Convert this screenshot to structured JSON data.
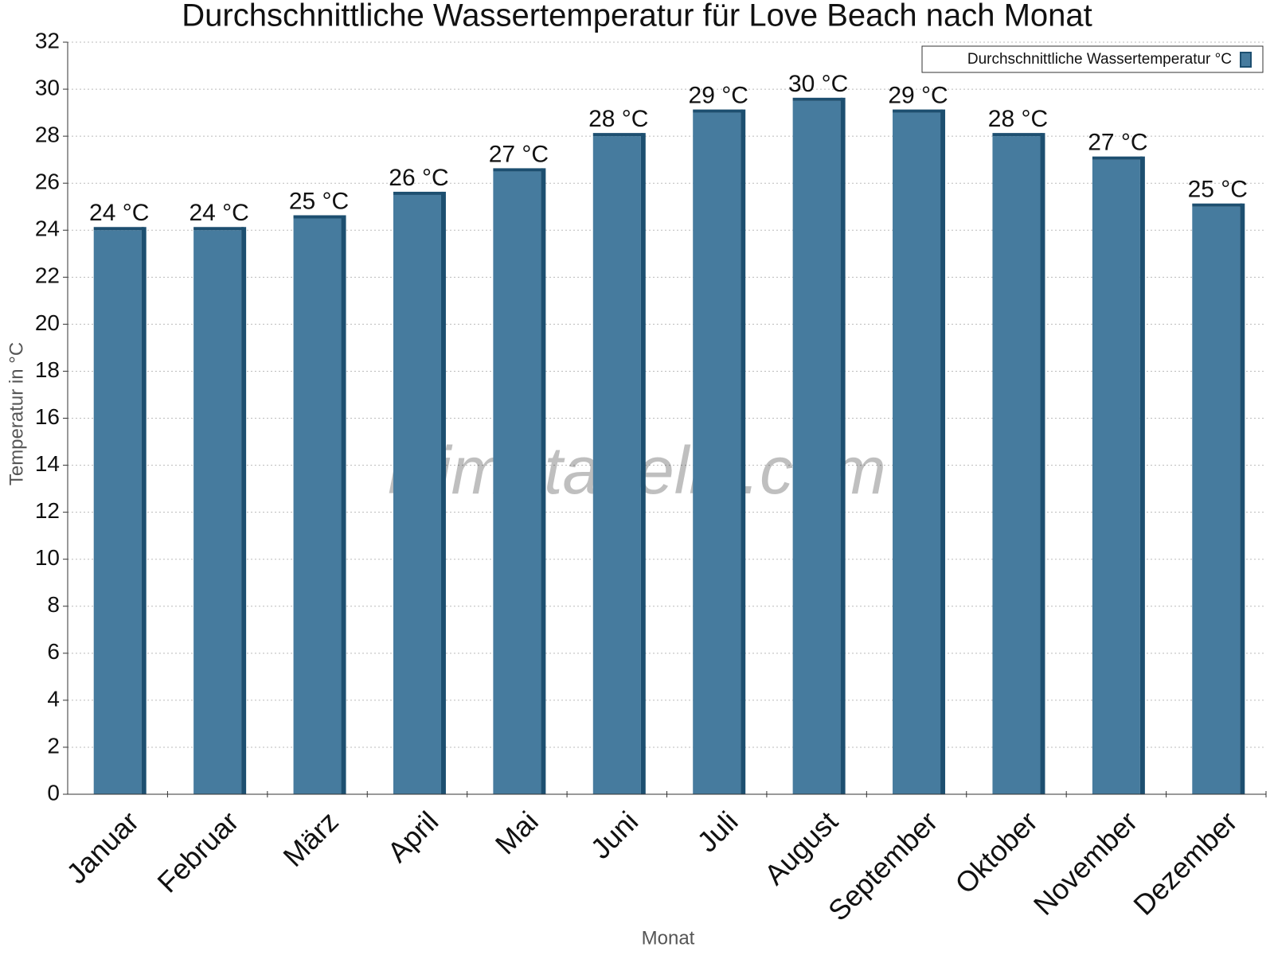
{
  "chart_data": {
    "type": "bar",
    "title": "Durchschnittliche Wassertemperatur für Love Beach nach Monat",
    "x_label": "Monat",
    "y_label": "Temperatur in °C",
    "watermark": "klimatabelle.com",
    "categories": [
      "Januar",
      "Februar",
      "März",
      "April",
      "Mai",
      "Juni",
      "Juli",
      "August",
      "September",
      "Oktober",
      "November",
      "Dezember"
    ],
    "series": [
      {
        "name": "Durchschnittliche Wassertemperatur °C",
        "color": "#467b9e",
        "values": [
          24,
          24,
          24.5,
          25.5,
          26.5,
          28,
          29,
          29.5,
          29,
          28,
          27,
          25
        ],
        "value_labels": [
          "24 °C",
          "24 °C",
          "25 °C",
          "26 °C",
          "27 °C",
          "28 °C",
          "29 °C",
          "30 °C",
          "29 °C",
          "28 °C",
          "27 °C",
          "25 °C"
        ]
      }
    ],
    "ylim": [
      0,
      32
    ],
    "yticks": [
      0,
      2,
      4,
      6,
      8,
      10,
      12,
      14,
      16,
      18,
      20,
      22,
      24,
      26,
      28,
      30,
      32
    ],
    "grid": true,
    "legend": "top-right"
  }
}
